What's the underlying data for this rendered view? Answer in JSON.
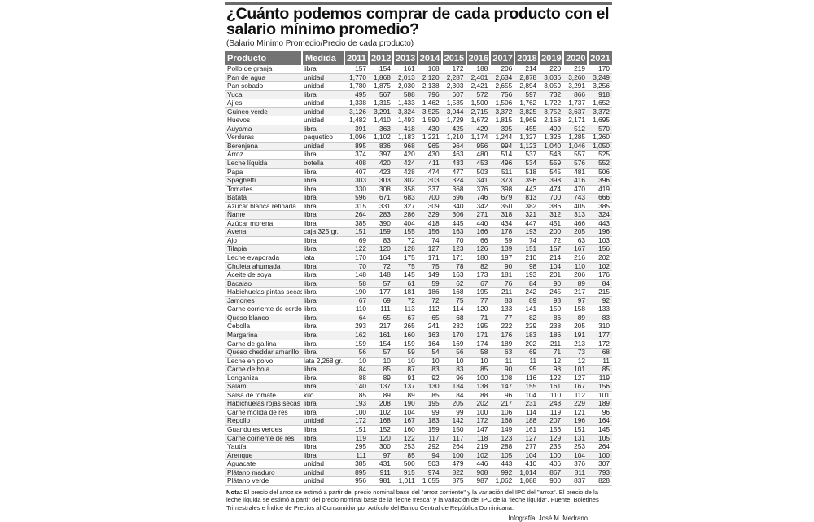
{
  "title": "¿Cuánto podemos comprar de cada producto con el salario mínimo promedio?",
  "subtitle": "(Salario Mínimo Promedio/Precio de cada producto)",
  "columns": {
    "product": "Producto",
    "unit": "Medida",
    "years": [
      "2011",
      "2012",
      "2013",
      "2014",
      "2015",
      "2016",
      "2017",
      "2018",
      "2019",
      "2020",
      "2021"
    ]
  },
  "rows": [
    {
      "product": "Pollo de granja",
      "unit": "libra",
      "values": [
        "157",
        "154",
        "161",
        "168",
        "172",
        "188",
        "206",
        "214",
        "220",
        "219",
        "170"
      ]
    },
    {
      "product": "Pan de agua",
      "unit": "unidad",
      "values": [
        "1,770",
        "1,868",
        "2,013",
        "2,120",
        "2,287",
        "2,401",
        "2,634",
        "2,878",
        "3,036",
        "3,260",
        "3,249"
      ]
    },
    {
      "product": "Pan sobado",
      "unit": "unidad",
      "values": [
        "1,780",
        "1,875",
        "2,030",
        "2,138",
        "2,303",
        "2,421",
        "2,655",
        "2,894",
        "3,059",
        "3,291",
        "3,256"
      ]
    },
    {
      "product": "Yuca",
      "unit": "libra",
      "values": [
        "495",
        "567",
        "588",
        "796",
        "607",
        "572",
        "756",
        "597",
        "732",
        "866",
        "918"
      ]
    },
    {
      "product": "Ajíes",
      "unit": "unidad",
      "values": [
        "1,338",
        "1,315",
        "1,433",
        "1,462",
        "1,535",
        "1,500",
        "1,506",
        "1,762",
        "1,722",
        "1,737",
        "1,652"
      ]
    },
    {
      "product": "Guineo verde",
      "unit": "unidad",
      "values": [
        "3,126",
        "3,291",
        "3,324",
        "3,525",
        "3,044",
        "2,715",
        "3,372",
        "3,825",
        "3,752",
        "3,637",
        "3,372"
      ]
    },
    {
      "product": "Huevos",
      "unit": "unidad",
      "values": [
        "1,482",
        "1,410",
        "1,493",
        "1,590",
        "1,729",
        "1,672",
        "1,815",
        "1,969",
        "2,158",
        "2,171",
        "1,695"
      ]
    },
    {
      "product": "Auyama",
      "unit": "libra",
      "values": [
        "391",
        "363",
        "418",
        "430",
        "425",
        "429",
        "395",
        "455",
        "499",
        "512",
        "570"
      ]
    },
    {
      "product": "Verduras",
      "unit": "paquetico",
      "values": [
        "1,096",
        "1,102",
        "1,183",
        "1,221",
        "1,210",
        "1,174",
        "1,244",
        "1,327",
        "1,326",
        "1,285",
        "1,260"
      ]
    },
    {
      "product": "Berenjena",
      "unit": "unidad",
      "values": [
        "895",
        "836",
        "968",
        "965",
        "964",
        "956",
        "994",
        "1,123",
        "1,040",
        "1,046",
        "1,050"
      ]
    },
    {
      "product": "Arroz",
      "unit": "libra",
      "values": [
        "374",
        "397",
        "420",
        "430",
        "463",
        "480",
        "514",
        "537",
        "543",
        "557",
        "525"
      ]
    },
    {
      "product": "Leche líquida",
      "unit": "botella",
      "values": [
        "408",
        "420",
        "424",
        "411",
        "433",
        "453",
        "496",
        "534",
        "559",
        "576",
        "552"
      ]
    },
    {
      "product": "Papa",
      "unit": "libra",
      "values": [
        "407",
        "423",
        "428",
        "474",
        "477",
        "503",
        "511",
        "518",
        "545",
        "481",
        "506"
      ]
    },
    {
      "product": "Spaghetti",
      "unit": "libra",
      "values": [
        "303",
        "303",
        "302",
        "303",
        "324",
        "341",
        "373",
        "396",
        "398",
        "416",
        "396"
      ]
    },
    {
      "product": "Tomates",
      "unit": "libra",
      "values": [
        "330",
        "308",
        "358",
        "337",
        "368",
        "376",
        "398",
        "443",
        "474",
        "470",
        "419"
      ]
    },
    {
      "product": "Batata",
      "unit": "libra",
      "values": [
        "596",
        "671",
        "683",
        "700",
        "696",
        "746",
        "679",
        "813",
        "700",
        "743",
        "666"
      ]
    },
    {
      "product": "Azúcar blanca refinada",
      "unit": "libra",
      "values": [
        "315",
        "331",
        "327",
        "309",
        "340",
        "342",
        "350",
        "382",
        "386",
        "405",
        "385"
      ]
    },
    {
      "product": "Ñame",
      "unit": "libra",
      "values": [
        "264",
        "283",
        "286",
        "329",
        "306",
        "271",
        "318",
        "321",
        "312",
        "313",
        "324"
      ]
    },
    {
      "product": "Azúcar morena",
      "unit": "libra",
      "values": [
        "385",
        "390",
        "404",
        "418",
        "445",
        "440",
        "434",
        "447",
        "451",
        "466",
        "443"
      ]
    },
    {
      "product": "Avena",
      "unit": "caja 325 gr.",
      "values": [
        "151",
        "159",
        "155",
        "156",
        "163",
        "166",
        "178",
        "193",
        "200",
        "205",
        "196"
      ]
    },
    {
      "product": "Ajo",
      "unit": "libra",
      "values": [
        "69",
        "83",
        "72",
        "74",
        "70",
        "66",
        "59",
        "74",
        "72",
        "63",
        "103"
      ]
    },
    {
      "product": "Tilapia",
      "unit": "libra",
      "values": [
        "122",
        "120",
        "128",
        "127",
        "123",
        "126",
        "139",
        "151",
        "157",
        "167",
        "156"
      ]
    },
    {
      "product": "Leche evaporada",
      "unit": "lata",
      "values": [
        "170",
        "164",
        "175",
        "171",
        "171",
        "180",
        "197",
        "210",
        "214",
        "216",
        "202"
      ]
    },
    {
      "product": "Chuleta ahumada",
      "unit": "libra",
      "values": [
        "70",
        "72",
        "75",
        "75",
        "78",
        "82",
        "90",
        "98",
        "104",
        "110",
        "102"
      ]
    },
    {
      "product": "Aceite de soya",
      "unit": "libra",
      "values": [
        "148",
        "148",
        "145",
        "149",
        "163",
        "173",
        "181",
        "193",
        "201",
        "206",
        "176"
      ]
    },
    {
      "product": "Bacalao",
      "unit": "libra",
      "values": [
        "58",
        "57",
        "61",
        "59",
        "62",
        "67",
        "76",
        "84",
        "90",
        "89",
        "84"
      ]
    },
    {
      "product": "Habichuelas pintas secas",
      "unit": "libra",
      "values": [
        "190",
        "177",
        "181",
        "186",
        "168",
        "195",
        "211",
        "242",
        "245",
        "217",
        "215"
      ]
    },
    {
      "product": "Jamones",
      "unit": "libra",
      "values": [
        "67",
        "69",
        "72",
        "72",
        "75",
        "77",
        "83",
        "89",
        "93",
        "97",
        "92"
      ]
    },
    {
      "product": "Carne corriente de cerdo",
      "unit": "libra",
      "values": [
        "110",
        "111",
        "113",
        "112",
        "114",
        "120",
        "133",
        "141",
        "150",
        "158",
        "133"
      ]
    },
    {
      "product": "Queso blanco",
      "unit": "libra",
      "values": [
        "64",
        "65",
        "67",
        "65",
        "68",
        "71",
        "77",
        "82",
        "86",
        "89",
        "83"
      ]
    },
    {
      "product": "Cebolla",
      "unit": "libra",
      "values": [
        "293",
        "217",
        "265",
        "241",
        "232",
        "195",
        "222",
        "229",
        "238",
        "205",
        "310"
      ]
    },
    {
      "product": "Margarina",
      "unit": "libra",
      "values": [
        "162",
        "161",
        "160",
        "163",
        "170",
        "171",
        "176",
        "183",
        "186",
        "191",
        "177"
      ]
    },
    {
      "product": "Carne de gallina",
      "unit": "libra",
      "values": [
        "159",
        "154",
        "159",
        "164",
        "169",
        "174",
        "189",
        "202",
        "211",
        "213",
        "172"
      ]
    },
    {
      "product": "Queso cheddar amarillo",
      "unit": "libra",
      "values": [
        "56",
        "57",
        "59",
        "54",
        "56",
        "58",
        "63",
        "69",
        "71",
        "73",
        "68"
      ]
    },
    {
      "product": "Leche en polvo",
      "unit": "lata 2,268 gr.",
      "values": [
        "10",
        "10",
        "10",
        "10",
        "10",
        "10",
        "11",
        "11",
        "12",
        "12",
        "11"
      ]
    },
    {
      "product": "Carne de bola",
      "unit": "libra",
      "values": [
        "84",
        "85",
        "87",
        "83",
        "83",
        "85",
        "90",
        "95",
        "98",
        "101",
        "85"
      ]
    },
    {
      "product": "Longaniza",
      "unit": "libra",
      "values": [
        "88",
        "89",
        "91",
        "92",
        "96",
        "100",
        "108",
        "116",
        "122",
        "127",
        "119"
      ]
    },
    {
      "product": "Salami",
      "unit": "libra",
      "values": [
        "140",
        "137",
        "137",
        "130",
        "134",
        "138",
        "147",
        "155",
        "161",
        "167",
        "156"
      ]
    },
    {
      "product": "Salsa de tomate",
      "unit": "kilo",
      "values": [
        "85",
        "89",
        "89",
        "85",
        "84",
        "88",
        "96",
        "104",
        "110",
        "112",
        "101"
      ]
    },
    {
      "product": "Habichuelas rojas secas",
      "unit": "libra",
      "values": [
        "193",
        "208",
        "190",
        "195",
        "205",
        "202",
        "217",
        "231",
        "248",
        "229",
        "189"
      ]
    },
    {
      "product": "Carne molida de res",
      "unit": "libra",
      "values": [
        "100",
        "102",
        "104",
        "99",
        "99",
        "100",
        "106",
        "114",
        "119",
        "121",
        "96"
      ]
    },
    {
      "product": "Repollo",
      "unit": "unidad",
      "values": [
        "172",
        "168",
        "167",
        "183",
        "142",
        "172",
        "168",
        "188",
        "207",
        "196",
        "164"
      ]
    },
    {
      "product": "Guandules verdes",
      "unit": "libra",
      "values": [
        "151",
        "152",
        "160",
        "159",
        "150",
        "147",
        "149",
        "161",
        "156",
        "151",
        "145"
      ]
    },
    {
      "product": "Carne corriente de res",
      "unit": "libra",
      "values": [
        "119",
        "120",
        "122",
        "117",
        "117",
        "118",
        "123",
        "127",
        "129",
        "131",
        "105"
      ]
    },
    {
      "product": "Yautía",
      "unit": "libra",
      "values": [
        "295",
        "300",
        "253",
        "292",
        "264",
        "219",
        "288",
        "277",
        "235",
        "253",
        "264"
      ]
    },
    {
      "product": "Arenque",
      "unit": "libra",
      "values": [
        "111",
        "97",
        "85",
        "94",
        "100",
        "102",
        "105",
        "104",
        "100",
        "104",
        "100"
      ]
    },
    {
      "product": "Aguacate",
      "unit": "unidad",
      "values": [
        "385",
        "431",
        "500",
        "503",
        "479",
        "446",
        "443",
        "410",
        "406",
        "376",
        "307"
      ]
    },
    {
      "product": "Plátano maduro",
      "unit": "unidad",
      "values": [
        "895",
        "911",
        "915",
        "974",
        "822",
        "908",
        "992",
        "1,014",
        "867",
        "811",
        "793"
      ]
    },
    {
      "product": "Plátano verde",
      "unit": "unidad",
      "values": [
        "956",
        "981",
        "1,011",
        "1,055",
        "875",
        "987",
        "1,062",
        "1,088",
        "900",
        "837",
        "828"
      ]
    }
  ],
  "note": {
    "label": "Nota:",
    "text": "El precio del arroz se estimó a partir del precio nominal base del \"arroz corriente\" y la variación del IPC del \"arroz\". El precio de la leche líquida se estimó a partir del precio nominal base de la \"leche fresca\" y la variación del IPC de la \"leche líquida\". Fuente: Boletines Trimestrales e Índice de Precios al Consumidor por Artículo del Banco Central de República Dominicana."
  },
  "credit": "Infografía: José M. Medrano"
}
